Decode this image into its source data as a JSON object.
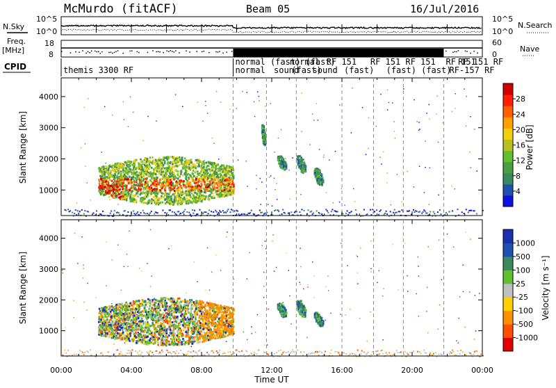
{
  "header": {
    "station": "McMurdo (fitACF)",
    "beam": "Beam 05",
    "date": "16/Jul/2016"
  },
  "noise_panel": {
    "left_label": "N.Sky",
    "right_label": "N.Search",
    "ticks_left": [
      "10^5",
      "10^0"
    ],
    "ticks_right": [
      "10^5",
      "10^0"
    ]
  },
  "freq_panel": {
    "left_label_1": "Freq.",
    "left_label_2": "[MHz]",
    "right_label": "Nave",
    "ticks_left": [
      "18",
      "8"
    ],
    "ticks_right": [
      "60",
      "0"
    ]
  },
  "cpid": {
    "label": "CPID",
    "segments": [
      {
        "start_hour": 0.0,
        "text": "themis 3300 RF",
        "row": 1
      },
      {
        "start_hour": 9.8,
        "text": "normal",
        "row": 0
      },
      {
        "start_hour": 9.8,
        "text": "normal",
        "row": 1
      },
      {
        "start_hour": 11.8,
        "text": "(fast)",
        "row": 0
      },
      {
        "start_hour": 12.0,
        "text": "sound",
        "row": 1
      },
      {
        "start_hour": 12.9,
        "text": "normal",
        "row": 0
      },
      {
        "start_hour": 13.0,
        "text": "(fast)",
        "row": 1
      },
      {
        "start_hour": 13.8,
        "text": "(fast)",
        "row": 0
      },
      {
        "start_hour": 14.2,
        "text": "sound",
        "row": 1
      },
      {
        "start_hour": 15.0,
        "text": "RF 151",
        "row": 0
      },
      {
        "start_hour": 16.0,
        "text": "(fast)",
        "row": 1
      },
      {
        "start_hour": 17.5,
        "text": "RF 151",
        "row": 0
      },
      {
        "start_hour": 18.4,
        "text": "(fast)",
        "row": 1
      },
      {
        "start_hour": 19.5,
        "text": "RF 151",
        "row": 0
      },
      {
        "start_hour": 20.4,
        "text": "(fast)",
        "row": 1
      },
      {
        "start_hour": 21.8,
        "text": "RF 151",
        "row": 0
      },
      {
        "start_hour": 22.5,
        "text": "RF 151 RF",
        "row": 0
      },
      {
        "start_hour": 22.0,
        "text": "RF-157 RF",
        "row": 1
      }
    ]
  },
  "power_panel": {
    "ylabel": "Slant Range [km]",
    "colorbar_label": "Power [dB]",
    "colorbar_ticks": [
      "4",
      "8",
      "12",
      "16",
      "20",
      "24",
      "28"
    ],
    "colorbar_colors": [
      "#1010e0",
      "#2050b0",
      "#3a8a60",
      "#4aa040",
      "#60c030",
      "#b8c020",
      "#f0d010",
      "#ffa000",
      "#ff6000",
      "#ff2000",
      "#d00000"
    ]
  },
  "velocity_panel": {
    "ylabel": "Slant Range [km]",
    "colorbar_label": "Velocity [m s⁻¹]",
    "colorbar_ticks": [
      "1000",
      "500",
      "100",
      "25",
      "-25",
      "-100",
      "-500",
      "-1000"
    ],
    "colorbar_colors": [
      "#1a30b0",
      "#2050b0",
      "#3a8a60",
      "#60c030",
      "#c0c0c0",
      "#ffd000",
      "#ff9000",
      "#ff5000",
      "#e00000"
    ]
  },
  "x_axis": {
    "label": "Time UT",
    "ticks": [
      "00:00",
      "04:00",
      "08:00",
      "12:00",
      "16:00",
      "20:00",
      "00:00"
    ]
  },
  "chart_data": {
    "type": "heatmap",
    "x_range_hours": [
      0,
      24
    ],
    "y_range_km": [
      180,
      4600
    ],
    "yticks": [
      "1000",
      "2000",
      "3000",
      "4000"
    ],
    "xticks": [
      "00:00",
      "04:00",
      "08:00",
      "12:00",
      "16:00",
      "20:00",
      "00:00"
    ],
    "cpid_boundaries_hours": [
      9.8,
      11.7,
      13.4,
      16.0,
      17.8,
      19.5,
      21.8
    ],
    "power_regions": [
      {
        "t0": 2.1,
        "t1": 9.8,
        "r0": 550,
        "r1": 2100,
        "core": [
          1000,
          1400
        ],
        "hot_db": 28
      },
      {
        "t0": 11.4,
        "t1": 11.6,
        "r0": 2500,
        "r1": 3100,
        "hot_db": 24
      },
      {
        "t0": 12.3,
        "t1": 12.8,
        "r0": 1700,
        "r1": 2100,
        "hot_db": 12
      },
      {
        "t0": 13.4,
        "t1": 13.9,
        "r0": 1600,
        "r1": 2100,
        "hot_db": 14
      },
      {
        "t0": 14.4,
        "t1": 14.9,
        "r0": 1200,
        "r1": 1700,
        "hot_db": 14
      }
    ],
    "velocity_regions": [
      {
        "t0": 2.1,
        "t1": 9.8,
        "r0": 550,
        "r1": 2100,
        "dominant": [
          "100",
          "-100",
          "1000"
        ]
      },
      {
        "t0": 12.3,
        "t1": 12.8,
        "r0": 1500,
        "r1": 1900,
        "dominant": [
          "500"
        ]
      },
      {
        "t0": 13.4,
        "t1": 13.9,
        "r0": 1500,
        "r1": 2000,
        "dominant": [
          "500",
          "100"
        ]
      },
      {
        "t0": 14.4,
        "t1": 14.9,
        "r0": 1200,
        "r1": 1600,
        "dominant": [
          "100",
          "-100"
        ]
      }
    ],
    "ground_scatter_range_km": [
      180,
      400
    ]
  }
}
